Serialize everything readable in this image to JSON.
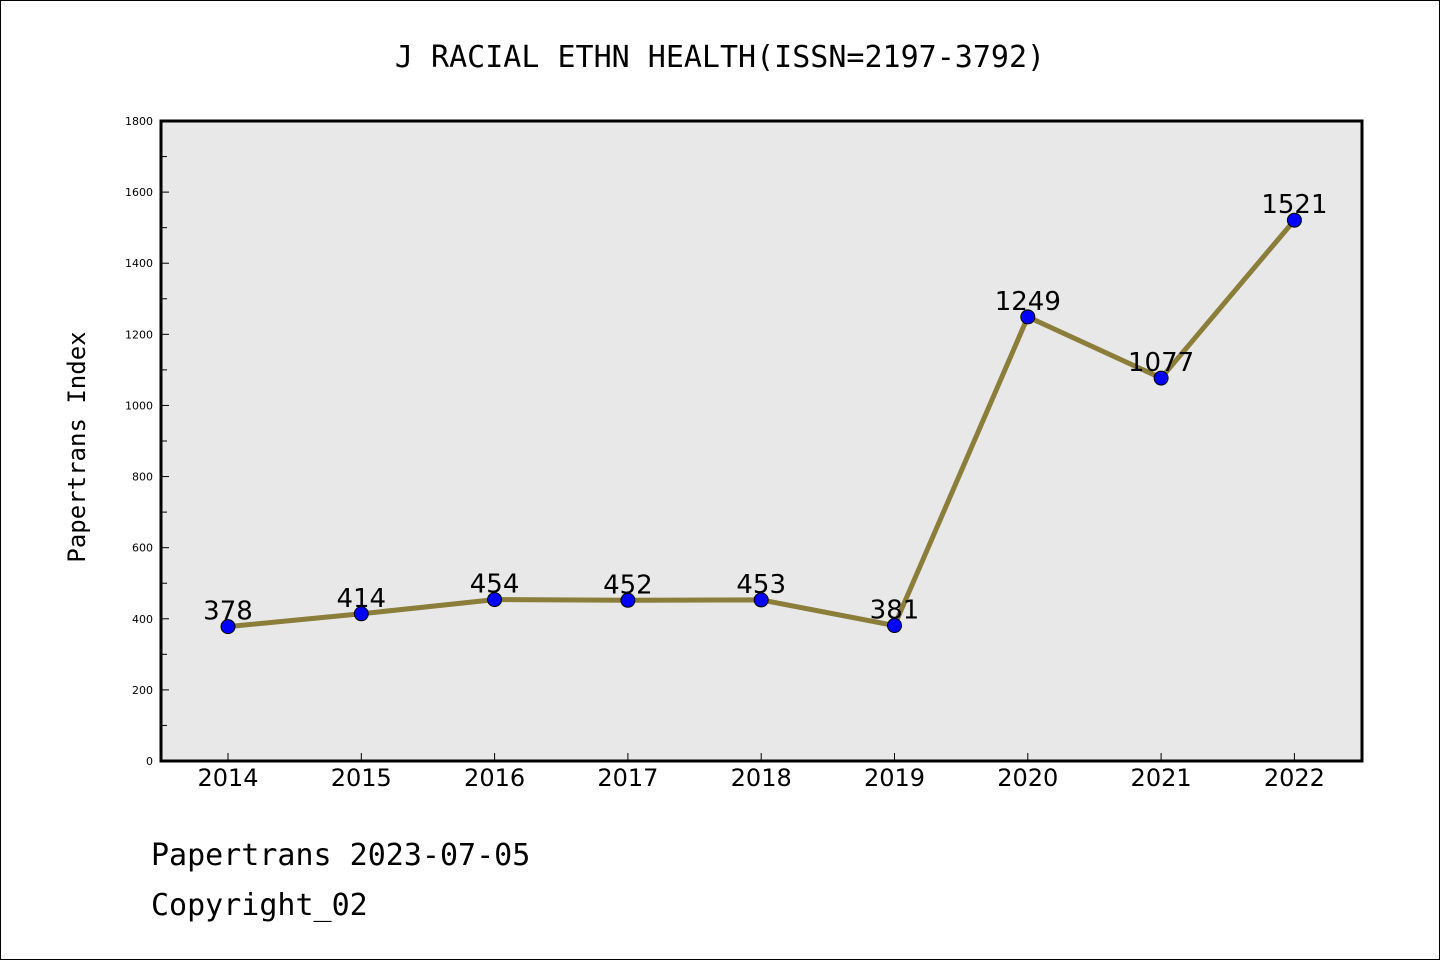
{
  "chart_data": {
    "type": "line",
    "title": "J RACIAL ETHN HEALTH(ISSN=2197-3792)",
    "xlabel": "",
    "ylabel": "Papertrans Index",
    "categories": [
      "2014",
      "2015",
      "2016",
      "2017",
      "2018",
      "2019",
      "2020",
      "2021",
      "2022"
    ],
    "values": [
      378,
      414,
      454,
      452,
      453,
      381,
      1249,
      1077,
      1521
    ],
    "ylim": [
      0,
      1800
    ],
    "yticks": [
      0,
      200,
      400,
      600,
      800,
      1000,
      1200,
      1400,
      1600,
      1800
    ],
    "grid": false,
    "legend": "none",
    "colors": {
      "line": "#8b7d3a",
      "marker": "#0000ff",
      "plot_background": "#e8e8e8"
    }
  },
  "footer": {
    "line1": "Papertrans 2023-07-05",
    "line2": "Copyright_02"
  }
}
